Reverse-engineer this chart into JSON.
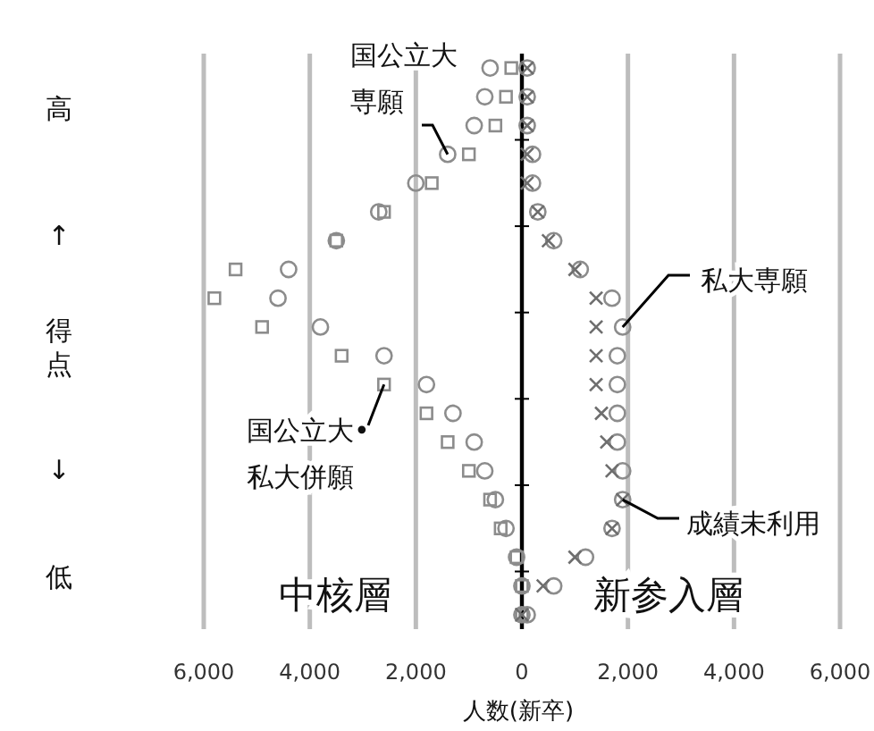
{
  "chart_data": {
    "type": "scatter",
    "orientation": "horizontal",
    "xlabel": "人数(新卒)",
    "ylabel": "得点",
    "annotations": [
      "高",
      "↑",
      "↓",
      "低",
      "中核層",
      "新参入層"
    ],
    "categories": [
      null,
      null,
      null,
      null,
      null,
      null,
      null,
      null,
      null,
      null,
      null,
      null,
      null,
      null,
      null,
      null,
      null,
      null,
      null,
      null
    ],
    "xlim": [
      -6000,
      6000
    ],
    "xticks": [
      {
        "value": -6000,
        "label": "6,000"
      },
      {
        "value": -4000,
        "label": "4,000"
      },
      {
        "value": -2000,
        "label": "2,000"
      },
      0,
      {
        "value": 2000,
        "label": "2,000"
      },
      {
        "value": 4000,
        "label": "4,000"
      },
      {
        "value": 6000,
        "label": "6,000"
      }
    ],
    "grid": "x",
    "tick_labels": "x",
    "series": [
      {
        "name": "国公立大専願",
        "color": "#8c8c8c",
        "marker": "circle",
        "values": [
          -600,
          -700,
          -900,
          -1400,
          -2000,
          -2700,
          -3500,
          -4400,
          -4600,
          -3800,
          -2600,
          -1800,
          -1300,
          -900,
          -700,
          -500,
          -300,
          -100,
          0,
          0
        ]
      },
      {
        "name": "国公立大•私大併願",
        "color": "#8c8c8c",
        "marker": "square",
        "values": [
          -200,
          -300,
          -500,
          -1000,
          -1700,
          -2600,
          -3500,
          -5400,
          -5800,
          -4900,
          -3400,
          -2600,
          -1800,
          -1400,
          -1000,
          -600,
          -400,
          -100,
          0,
          0
        ]
      },
      {
        "name": "私大専願",
        "color": "#8c8c8c",
        "marker": "circle",
        "values": [
          100,
          100,
          100,
          200,
          200,
          300,
          600,
          1100,
          1700,
          1900,
          1800,
          1800,
          1800,
          1800,
          1900,
          1900,
          1700,
          1200,
          600,
          100
        ]
      },
      {
        "name": "成績未利用",
        "color": "#6e6e6e",
        "marker": "cross",
        "values": [
          100,
          100,
          100,
          100,
          100,
          300,
          500,
          1000,
          1400,
          1400,
          1400,
          1400,
          1500,
          1600,
          1700,
          1900,
          1700,
          1000,
          400,
          0
        ]
      }
    ]
  }
}
